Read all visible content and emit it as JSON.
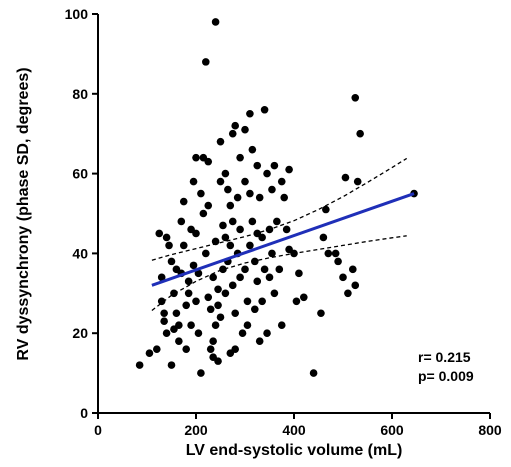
{
  "chart_data": {
    "type": "scatter",
    "title": "",
    "xlabel": "LV end-systolic volume (mL)",
    "ylabel": "RV dyssynchrony (phase SD, degrees)",
    "xlim": [
      0,
      800
    ],
    "ylim": [
      0,
      100
    ],
    "x_ticks": [
      "0",
      "200",
      "400",
      "600",
      "800"
    ],
    "y_ticks": [
      "0",
      "20",
      "40",
      "60",
      "80",
      "100"
    ],
    "grid": false,
    "annotations": [
      "r= 0.215",
      "p= 0.009"
    ],
    "regression_line": {
      "x": [
        110,
        645
      ],
      "y": [
        32,
        55
      ],
      "color": "#1f2fb8"
    },
    "ci_upper": {
      "x": [
        110,
        150,
        200,
        250,
        300,
        350,
        400,
        450,
        500,
        550,
        600,
        630
      ],
      "y": [
        38.3,
        39.7,
        41.2,
        42.7,
        44.2,
        46,
        48.2,
        51,
        54.2,
        57.8,
        61.5,
        63.8
      ]
    },
    "ci_lower": {
      "x": [
        110,
        150,
        200,
        250,
        300,
        350,
        400,
        450,
        500,
        550,
        600,
        630
      ],
      "y": [
        25.7,
        29.5,
        33,
        35.8,
        37.6,
        38.9,
        40,
        41,
        42,
        43,
        43.9,
        44.4
      ]
    },
    "series": [
      {
        "points": [
          [
            85,
            12
          ],
          [
            105,
            15
          ],
          [
            120,
            16
          ],
          [
            125,
            45
          ],
          [
            130,
            28
          ],
          [
            130,
            34
          ],
          [
            135,
            25
          ],
          [
            135,
            23
          ],
          [
            140,
            44
          ],
          [
            140,
            20
          ],
          [
            145,
            42
          ],
          [
            150,
            38
          ],
          [
            150,
            12
          ],
          [
            155,
            21
          ],
          [
            155,
            30
          ],
          [
            160,
            36
          ],
          [
            160,
            25
          ],
          [
            165,
            18
          ],
          [
            165,
            22
          ],
          [
            170,
            48
          ],
          [
            170,
            35
          ],
          [
            175,
            53
          ],
          [
            175,
            42
          ],
          [
            180,
            27
          ],
          [
            180,
            16
          ],
          [
            185,
            33
          ],
          [
            185,
            30
          ],
          [
            190,
            46
          ],
          [
            190,
            22
          ],
          [
            195,
            58
          ],
          [
            195,
            37
          ],
          [
            200,
            64
          ],
          [
            200,
            45
          ],
          [
            200,
            28
          ],
          [
            205,
            35
          ],
          [
            205,
            20
          ],
          [
            210,
            10
          ],
          [
            210,
            55
          ],
          [
            215,
            50
          ],
          [
            215,
            64
          ],
          [
            220,
            88
          ],
          [
            220,
            40
          ],
          [
            225,
            63
          ],
          [
            225,
            52
          ],
          [
            225,
            29
          ],
          [
            230,
            26
          ],
          [
            230,
            16
          ],
          [
            235,
            14
          ],
          [
            235,
            18
          ],
          [
            235,
            34
          ],
          [
            240,
            98
          ],
          [
            240,
            43
          ],
          [
            240,
            22
          ],
          [
            245,
            27
          ],
          [
            245,
            13
          ],
          [
            245,
            31
          ],
          [
            250,
            24
          ],
          [
            250,
            68
          ],
          [
            250,
            58
          ],
          [
            255,
            47
          ],
          [
            255,
            36
          ],
          [
            260,
            60
          ],
          [
            260,
            44
          ],
          [
            260,
            30
          ],
          [
            265,
            56
          ],
          [
            265,
            38
          ],
          [
            270,
            52
          ],
          [
            270,
            42
          ],
          [
            270,
            15
          ],
          [
            275,
            70
          ],
          [
            275,
            48
          ],
          [
            275,
            32
          ],
          [
            280,
            72
          ],
          [
            280,
            25
          ],
          [
            280,
            16
          ],
          [
            285,
            54
          ],
          [
            285,
            40
          ],
          [
            290,
            64
          ],
          [
            290,
            46
          ],
          [
            290,
            34
          ],
          [
            295,
            20
          ],
          [
            300,
            71
          ],
          [
            300,
            58
          ],
          [
            300,
            36
          ],
          [
            305,
            28
          ],
          [
            305,
            22
          ],
          [
            310,
            55
          ],
          [
            310,
            42
          ],
          [
            310,
            75
          ],
          [
            315,
            66
          ],
          [
            315,
            48
          ],
          [
            320,
            38
          ],
          [
            320,
            26
          ],
          [
            325,
            62
          ],
          [
            325,
            45
          ],
          [
            325,
            33
          ],
          [
            330,
            54
          ],
          [
            330,
            18
          ],
          [
            335,
            28
          ],
          [
            335,
            44
          ],
          [
            340,
            76
          ],
          [
            340,
            36
          ],
          [
            345,
            60
          ],
          [
            345,
            20
          ],
          [
            350,
            46
          ],
          [
            350,
            34
          ],
          [
            355,
            56
          ],
          [
            355,
            40
          ],
          [
            360,
            30
          ],
          [
            360,
            62
          ],
          [
            365,
            48
          ],
          [
            370,
            36
          ],
          [
            375,
            22
          ],
          [
            375,
            58
          ],
          [
            380,
            54
          ],
          [
            385,
            46
          ],
          [
            390,
            61
          ],
          [
            390,
            41
          ],
          [
            400,
            40
          ],
          [
            405,
            28
          ],
          [
            410,
            35
          ],
          [
            420,
            29
          ],
          [
            440,
            10
          ],
          [
            455,
            25
          ],
          [
            460,
            44
          ],
          [
            465,
            51
          ],
          [
            470,
            40
          ],
          [
            485,
            40
          ],
          [
            490,
            38
          ],
          [
            500,
            34
          ],
          [
            505,
            59
          ],
          [
            510,
            30
          ],
          [
            520,
            36
          ],
          [
            525,
            32
          ],
          [
            525,
            79
          ],
          [
            535,
            70
          ],
          [
            530,
            58
          ],
          [
            645,
            55
          ]
        ]
      }
    ]
  }
}
